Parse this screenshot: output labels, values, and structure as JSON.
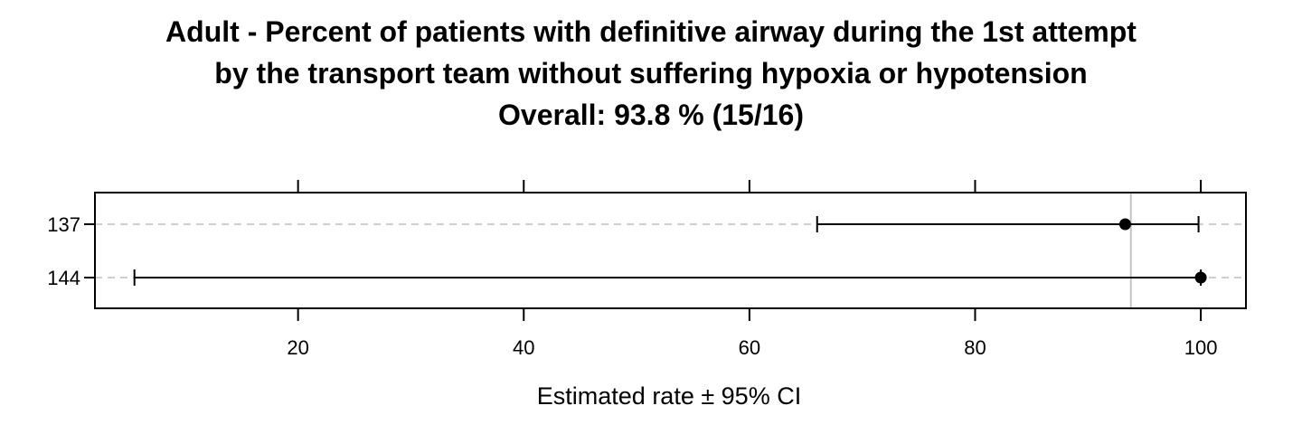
{
  "chart_data": {
    "type": "scatter",
    "title_lines": [
      "Adult - Percent of patients with definitive airway during the 1st attempt",
      "by the transport team without suffering hypoxia or hypotension",
      "Overall:  93.8 %  (15/16)"
    ],
    "xlabel": "Estimated rate ±  95% CI",
    "ylabel": "",
    "xlim": [
      2,
      104
    ],
    "x_ticks": [
      20,
      40,
      60,
      80,
      100
    ],
    "reference_line": 93.8,
    "grid": "horizontal dashed",
    "categories": [
      "137",
      "144"
    ],
    "points": [
      {
        "label": "137",
        "estimate": 93.3,
        "lower": 66.0,
        "upper": 99.8
      },
      {
        "label": "144",
        "estimate": 100.0,
        "lower": 5.5,
        "upper": 100.0
      }
    ]
  },
  "colors": {
    "points": "#000000",
    "grid": "#bebebe",
    "reference": "#bebebe",
    "frame": "#000000"
  }
}
